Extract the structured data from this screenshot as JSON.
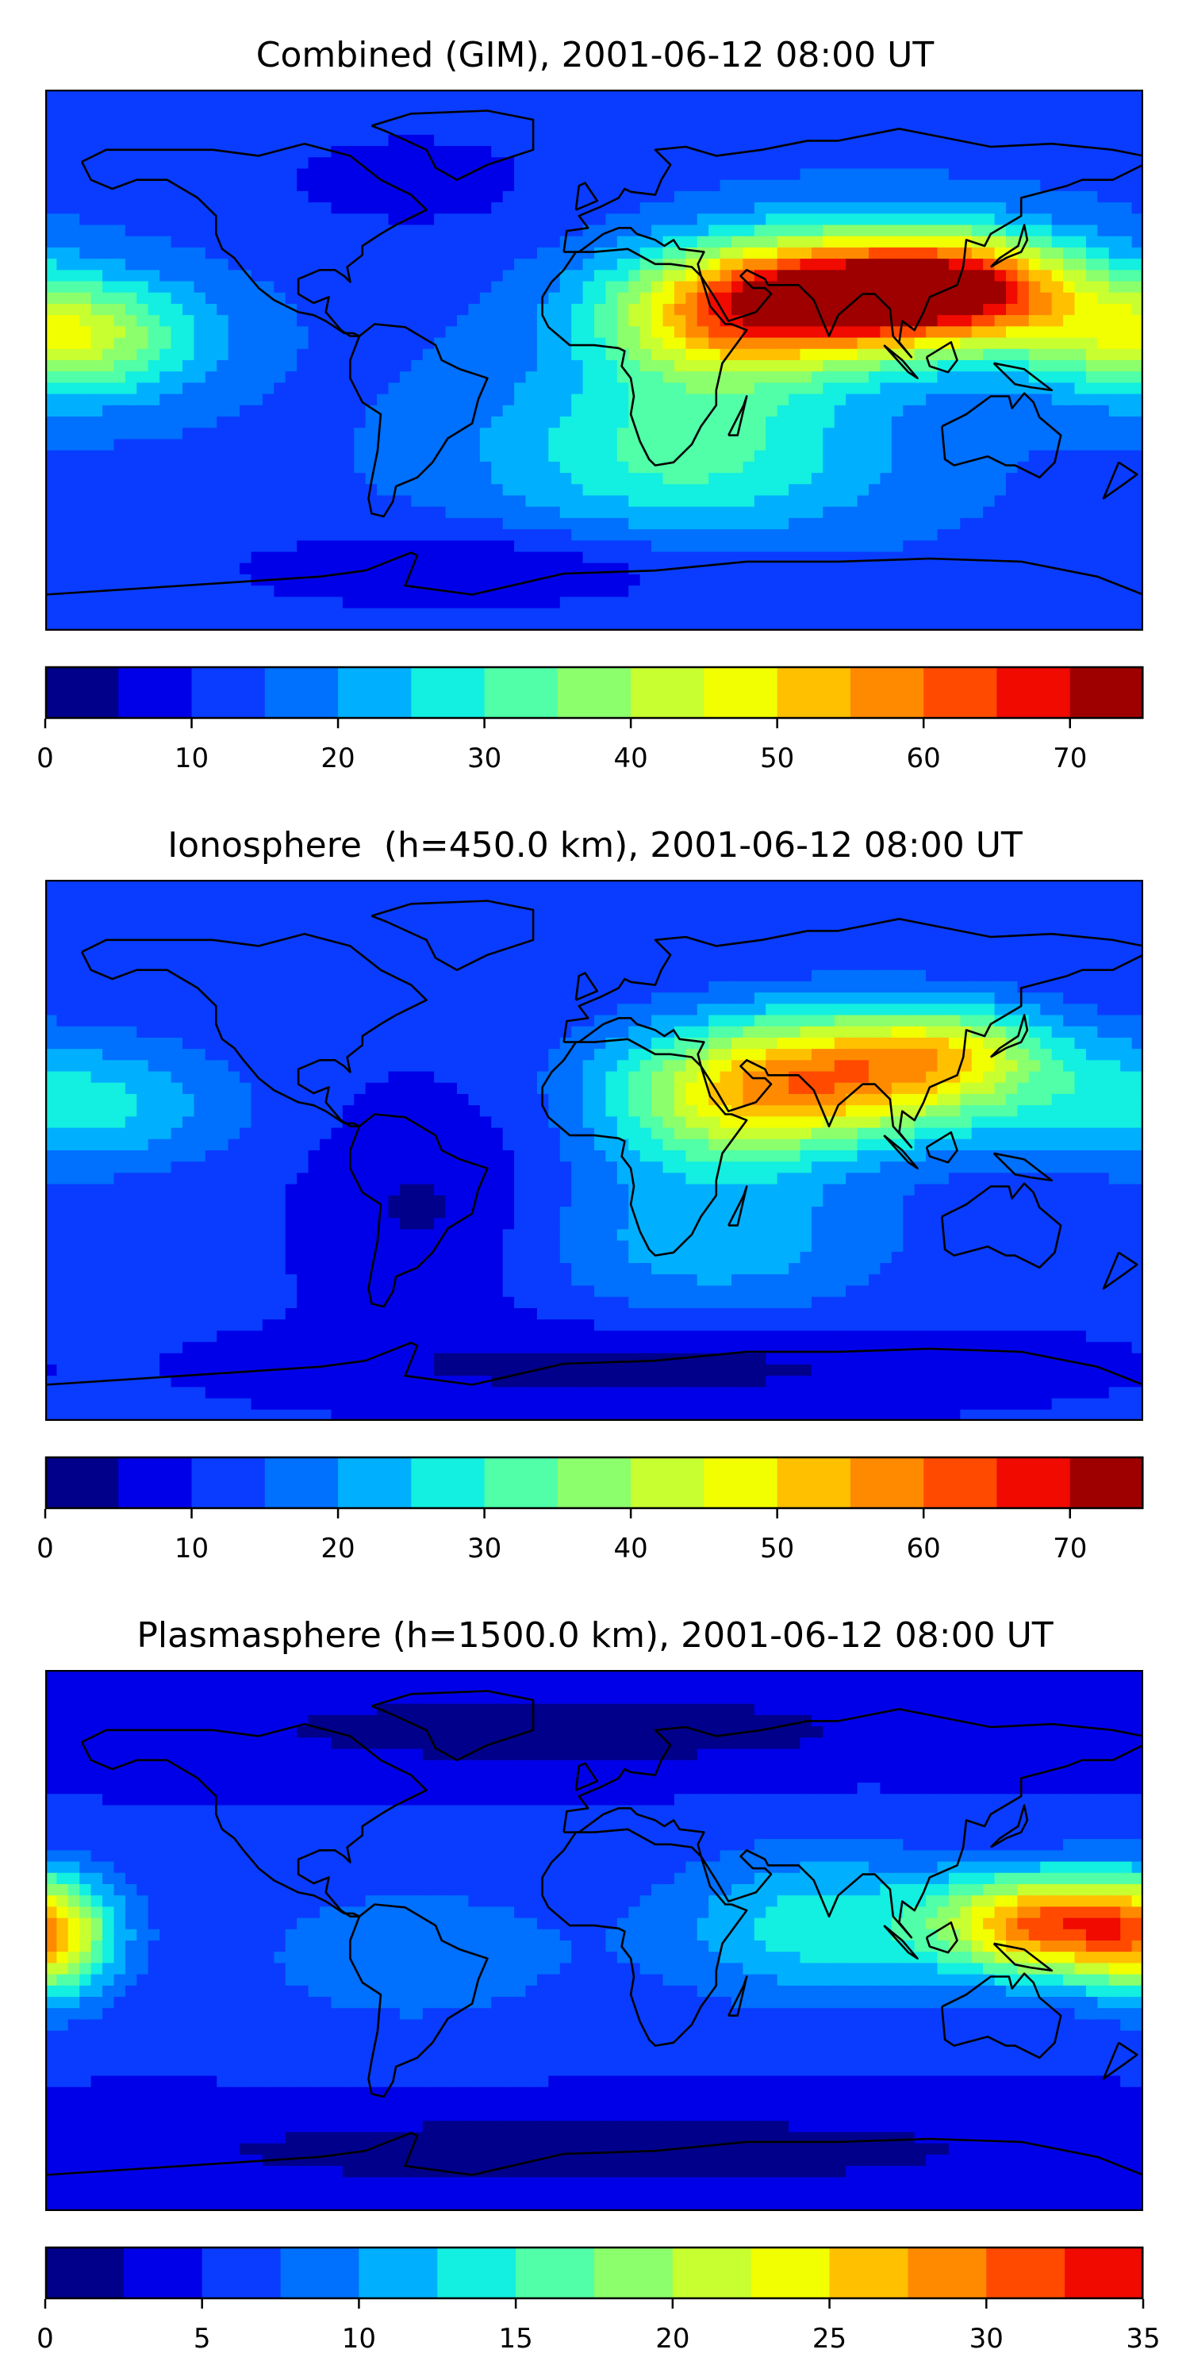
{
  "panels": [
    {
      "title": "Combined (GIM), 2001-06-12 08:00 UT",
      "colorbar": {
        "min": 0,
        "max": 75,
        "step": 5,
        "ticks": [
          0,
          10,
          20,
          30,
          40,
          50,
          60,
          70
        ],
        "tick_labels": [
          "0",
          "10",
          "20",
          "30",
          "40",
          "50",
          "60",
          "70"
        ]
      },
      "field": {
        "background": 14,
        "blobs": [
          {
            "lon": 85,
            "lat": 22,
            "amp": 60,
            "slon": 38,
            "slat": 14
          },
          {
            "lon": 125,
            "lat": 25,
            "amp": 28,
            "slon": 25,
            "slat": 12
          },
          {
            "lon": 40,
            "lat": 12,
            "amp": 25,
            "slon": 30,
            "slat": 15
          },
          {
            "lon": -175,
            "lat": 8,
            "amp": 32,
            "slon": 30,
            "slat": 14
          },
          {
            "lon": 30,
            "lat": -30,
            "amp": 18,
            "slon": 45,
            "slat": 20
          },
          {
            "lon": -60,
            "lat": 60,
            "amp": -6,
            "slon": 40,
            "slat": 15
          },
          {
            "lon": -40,
            "lat": -70,
            "amp": -9,
            "slon": 60,
            "slat": 10
          }
        ]
      }
    },
    {
      "title": "Ionosphere  (h=450.0 km), 2001-06-12 08:00 UT",
      "colorbar": {
        "min": 0,
        "max": 75,
        "step": 5,
        "ticks": [
          0,
          10,
          20,
          30,
          40,
          50,
          60,
          70
        ],
        "tick_labels": [
          "0",
          "10",
          "20",
          "30",
          "40",
          "50",
          "60",
          "70"
        ]
      },
      "field": {
        "background": 11,
        "blobs": [
          {
            "lon": 80,
            "lat": 25,
            "amp": 45,
            "slon": 42,
            "slat": 15
          },
          {
            "lon": 120,
            "lat": 35,
            "amp": 14,
            "slon": 22,
            "slat": 10
          },
          {
            "lon": 40,
            "lat": 10,
            "amp": 16,
            "slon": 28,
            "slat": 15
          },
          {
            "lon": -170,
            "lat": 15,
            "amp": 16,
            "slon": 35,
            "slat": 15
          },
          {
            "lon": 40,
            "lat": -30,
            "amp": 12,
            "slon": 40,
            "slat": 18
          },
          {
            "lon": -55,
            "lat": -20,
            "amp": -7,
            "slon": 25,
            "slat": 25
          },
          {
            "lon": 20,
            "lat": -72,
            "amp": -8,
            "slon": 80,
            "slat": 10
          }
        ]
      }
    },
    {
      "title": "Plasmasphere (h=1500.0 km), 2001-06-12 08:00 UT",
      "colorbar": {
        "min": 0,
        "max": 35,
        "step": 2.5,
        "ticks": [
          0,
          5,
          10,
          15,
          20,
          25,
          30,
          35
        ],
        "tick_labels": [
          "0",
          "5",
          "10",
          "15",
          "20",
          "25",
          "30",
          "35"
        ]
      },
      "field": {
        "background": 5,
        "blobs": [
          {
            "lon": 150,
            "lat": 5,
            "amp": 25,
            "slon": 25,
            "slat": 12
          },
          {
            "lon": 75,
            "lat": 5,
            "amp": 9,
            "slon": 35,
            "slat": 18
          },
          {
            "lon": -178,
            "lat": 0,
            "amp": 14,
            "slon": 15,
            "slat": 15
          },
          {
            "lon": -60,
            "lat": -5,
            "amp": 4,
            "slon": 45,
            "slat": 20
          },
          {
            "lon": -10,
            "lat": 70,
            "amp": -4,
            "slon": 90,
            "slat": 10
          },
          {
            "lon": 0,
            "lat": -70,
            "amp": -4,
            "slon": 120,
            "slat": 10
          }
        ]
      }
    }
  ],
  "colors": [
    "#00008b",
    "#0000e8",
    "#0a3cff",
    "#0070ff",
    "#00b0ff",
    "#13efe0",
    "#50ffa8",
    "#8cff6c",
    "#c8ff30",
    "#f2ff00",
    "#ffc000",
    "#ff8a00",
    "#ff4a00",
    "#f00a00",
    "#9e0000"
  ],
  "chart_data": [
    {
      "type": "heatmap",
      "title": "Combined (GIM), 2001-06-12 08:00 UT",
      "colorbar_range": [
        0,
        75
      ],
      "colorbar_ticks": [
        0,
        10,
        20,
        30,
        40,
        50,
        60,
        70
      ],
      "levels_step": 5,
      "features": {
        "max_value_approx": 72,
        "max_region": "South/Southeast Asia (~lon 85E, lat 22N)"
      }
    },
    {
      "type": "heatmap",
      "title": "Ionosphere  (h=450.0 km), 2001-06-12 08:00 UT",
      "colorbar_range": [
        0,
        75
      ],
      "colorbar_ticks": [
        0,
        10,
        20,
        30,
        40,
        50,
        60,
        70
      ],
      "levels_step": 5,
      "features": {
        "max_value_approx": 62,
        "max_region": "South/Southeast Asia (~lon 80E, lat 25N)"
      }
    },
    {
      "type": "heatmap",
      "title": "Plasmasphere (h=1500.0 km), 2001-06-12 08:00 UT",
      "colorbar_range": [
        0,
        35
      ],
      "colorbar_ticks": [
        0,
        5,
        10,
        15,
        20,
        25,
        30,
        35
      ],
      "levels_step": 2.5,
      "features": {
        "max_value_approx": 30,
        "max_region": "Western Pacific near New Guinea (~lon 150E, lat 5N)"
      }
    }
  ]
}
